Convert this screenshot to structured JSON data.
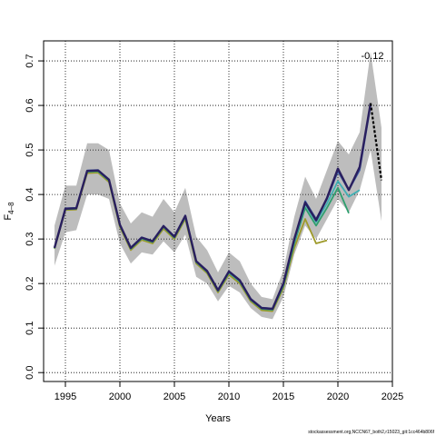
{
  "chart_data": {
    "type": "line",
    "title": "",
    "xlabel": "Years",
    "ylabel": "F",
    "ylabel_sub": "4–8",
    "xlim": [
      1993,
      2025
    ],
    "ylim": [
      -0.02,
      0.745
    ],
    "xticks": [
      1995,
      2000,
      2005,
      2010,
      2015,
      2020,
      2025
    ],
    "yticks": [
      0.0,
      0.1,
      0.2,
      0.3,
      0.4,
      0.5,
      0.6,
      0.7
    ],
    "grid": true,
    "annotation": "-0.12",
    "footer": "stockassessment.org,NCCN67_both2,r15023_git:1cc464b806f",
    "band": {
      "x": [
        1994,
        1995,
        1996,
        1997,
        1998,
        1999,
        2000,
        2001,
        2002,
        2003,
        2004,
        2005,
        2006,
        2007,
        2008,
        2009,
        2010,
        2011,
        2012,
        2013,
        2014,
        2015,
        2016,
        2017,
        2018,
        2019,
        2020,
        2021,
        2022,
        2023,
        2024
      ],
      "upper": [
        0.33,
        0.42,
        0.42,
        0.515,
        0.515,
        0.5,
        0.38,
        0.335,
        0.36,
        0.35,
        0.39,
        0.36,
        0.415,
        0.305,
        0.275,
        0.225,
        0.27,
        0.25,
        0.2,
        0.17,
        0.165,
        0.23,
        0.35,
        0.44,
        0.39,
        0.455,
        0.52,
        0.49,
        0.54,
        0.72,
        0.55
      ],
      "lower": [
        0.24,
        0.315,
        0.32,
        0.4,
        0.4,
        0.39,
        0.29,
        0.245,
        0.27,
        0.265,
        0.295,
        0.27,
        0.31,
        0.215,
        0.2,
        0.16,
        0.195,
        0.18,
        0.145,
        0.125,
        0.12,
        0.17,
        0.265,
        0.33,
        0.3,
        0.345,
        0.39,
        0.36,
        0.41,
        0.5,
        0.34
      ]
    },
    "series": [
      {
        "color": "#9e9a2a",
        "values": [
          [
            1994,
            0.278
          ],
          [
            1995,
            0.365
          ],
          [
            1996,
            0.366
          ],
          [
            1997,
            0.448
          ],
          [
            1998,
            0.449
          ],
          [
            1999,
            0.428
          ],
          [
            2000,
            0.327
          ],
          [
            2001,
            0.275
          ],
          [
            2002,
            0.298
          ],
          [
            2003,
            0.29
          ],
          [
            2004,
            0.323
          ],
          [
            2005,
            0.3
          ],
          [
            2006,
            0.345
          ],
          [
            2007,
            0.245
          ],
          [
            2008,
            0.223
          ],
          [
            2009,
            0.18
          ],
          [
            2010,
            0.22
          ],
          [
            2011,
            0.2
          ],
          [
            2012,
            0.16
          ],
          [
            2013,
            0.14
          ],
          [
            2014,
            0.138
          ],
          [
            2015,
            0.19
          ],
          [
            2016,
            0.28
          ],
          [
            2017,
            0.345
          ],
          [
            2018,
            0.29
          ],
          [
            2019,
            0.297
          ]
        ]
      },
      {
        "color": "#2e9f6e",
        "values": [
          [
            1994,
            0.279
          ],
          [
            1995,
            0.367
          ],
          [
            1996,
            0.368
          ],
          [
            1997,
            0.451
          ],
          [
            1998,
            0.452
          ],
          [
            1999,
            0.431
          ],
          [
            2000,
            0.33
          ],
          [
            2001,
            0.278
          ],
          [
            2002,
            0.301
          ],
          [
            2003,
            0.293
          ],
          [
            2004,
            0.327
          ],
          [
            2005,
            0.303
          ],
          [
            2006,
            0.349
          ],
          [
            2007,
            0.248
          ],
          [
            2008,
            0.226
          ],
          [
            2009,
            0.183
          ],
          [
            2010,
            0.224
          ],
          [
            2011,
            0.204
          ],
          [
            2012,
            0.163
          ],
          [
            2013,
            0.143
          ],
          [
            2014,
            0.141
          ],
          [
            2015,
            0.195
          ],
          [
            2016,
            0.29
          ],
          [
            2017,
            0.37
          ],
          [
            2018,
            0.33
          ],
          [
            2019,
            0.37
          ],
          [
            2020,
            0.415
          ],
          [
            2021,
            0.358
          ]
        ]
      },
      {
        "color": "#3fb0b4",
        "values": [
          [
            1994,
            0.28
          ],
          [
            1995,
            0.368
          ],
          [
            1996,
            0.369
          ],
          [
            1997,
            0.452
          ],
          [
            1998,
            0.453
          ],
          [
            1999,
            0.432
          ],
          [
            2000,
            0.331
          ],
          [
            2001,
            0.279
          ],
          [
            2002,
            0.302
          ],
          [
            2003,
            0.294
          ],
          [
            2004,
            0.328
          ],
          [
            2005,
            0.304
          ],
          [
            2006,
            0.35
          ],
          [
            2007,
            0.249
          ],
          [
            2008,
            0.227
          ],
          [
            2009,
            0.184
          ],
          [
            2010,
            0.225
          ],
          [
            2011,
            0.205
          ],
          [
            2012,
            0.164
          ],
          [
            2013,
            0.144
          ],
          [
            2014,
            0.142
          ],
          [
            2015,
            0.198
          ],
          [
            2016,
            0.295
          ],
          [
            2017,
            0.378
          ],
          [
            2018,
            0.338
          ],
          [
            2019,
            0.38
          ],
          [
            2020,
            0.43
          ],
          [
            2021,
            0.395
          ],
          [
            2022,
            0.41
          ]
        ]
      },
      {
        "color": "#3b5ca8",
        "values": [
          [
            1994,
            0.281
          ],
          [
            1995,
            0.369
          ],
          [
            1996,
            0.37
          ],
          [
            1997,
            0.454
          ],
          [
            1998,
            0.455
          ],
          [
            1999,
            0.434
          ],
          [
            2000,
            0.333
          ],
          [
            2001,
            0.281
          ],
          [
            2002,
            0.304
          ],
          [
            2003,
            0.296
          ],
          [
            2004,
            0.33
          ],
          [
            2005,
            0.306
          ],
          [
            2006,
            0.353
          ],
          [
            2007,
            0.251
          ],
          [
            2008,
            0.229
          ],
          [
            2009,
            0.186
          ],
          [
            2010,
            0.228
          ],
          [
            2011,
            0.208
          ],
          [
            2012,
            0.166
          ],
          [
            2013,
            0.146
          ],
          [
            2014,
            0.144
          ],
          [
            2015,
            0.2
          ],
          [
            2016,
            0.3
          ],
          [
            2017,
            0.385
          ],
          [
            2018,
            0.345
          ],
          [
            2019,
            0.39
          ],
          [
            2020,
            0.452
          ],
          [
            2021,
            0.41
          ],
          [
            2022,
            0.455
          ],
          [
            2023,
            0.6
          ]
        ]
      },
      {
        "color": "#2a1f5e",
        "width": 2.4,
        "values": [
          [
            1994,
            0.28
          ],
          [
            1995,
            0.368
          ],
          [
            1996,
            0.369
          ],
          [
            1997,
            0.453
          ],
          [
            1998,
            0.454
          ],
          [
            1999,
            0.433
          ],
          [
            2000,
            0.332
          ],
          [
            2001,
            0.28
          ],
          [
            2002,
            0.303
          ],
          [
            2003,
            0.295
          ],
          [
            2004,
            0.329
          ],
          [
            2005,
            0.305
          ],
          [
            2006,
            0.352
          ],
          [
            2007,
            0.25
          ],
          [
            2008,
            0.228
          ],
          [
            2009,
            0.185
          ],
          [
            2010,
            0.227
          ],
          [
            2011,
            0.207
          ],
          [
            2012,
            0.165
          ],
          [
            2013,
            0.145
          ],
          [
            2014,
            0.143
          ],
          [
            2015,
            0.2
          ],
          [
            2016,
            0.3
          ],
          [
            2017,
            0.382
          ],
          [
            2018,
            0.342
          ],
          [
            2019,
            0.392
          ],
          [
            2020,
            0.458
          ],
          [
            2021,
            0.41
          ],
          [
            2022,
            0.462
          ],
          [
            2023,
            0.605
          ]
        ]
      },
      {
        "color": "#000000",
        "dash": "3,2",
        "width": 2.2,
        "values": [
          [
            2023,
            0.605
          ],
          [
            2024,
            0.432
          ]
        ]
      }
    ]
  }
}
